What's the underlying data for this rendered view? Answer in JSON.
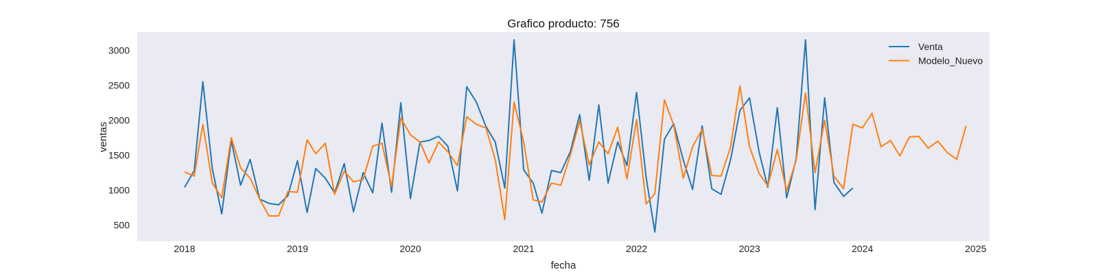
{
  "chart_data": {
    "type": "line",
    "title": "Grafico producto: 756",
    "xlabel": "fecha",
    "ylabel": "ventas",
    "xlim": [
      "2017-08-01",
      "2025-02-15"
    ],
    "ylim": [
      270,
      3260
    ],
    "x_ticks": [
      "2018",
      "2019",
      "2020",
      "2021",
      "2022",
      "2023",
      "2024",
      "2025"
    ],
    "y_ticks": [
      500,
      1000,
      1500,
      2000,
      2500,
      3000
    ],
    "grid": false,
    "legend_position": "top-right",
    "series": [
      {
        "name": "Venta",
        "color": "#1f77b4",
        "x": [
          "2018-01",
          "2018-02",
          "2018-03",
          "2018-04",
          "2018-05",
          "2018-06",
          "2018-07",
          "2018-08",
          "2018-09",
          "2018-10",
          "2018-11",
          "2018-12",
          "2019-01",
          "2019-02",
          "2019-03",
          "2019-04",
          "2019-05",
          "2019-06",
          "2019-07",
          "2019-08",
          "2019-09",
          "2019-10",
          "2019-11",
          "2019-12",
          "2020-01",
          "2020-02",
          "2020-03",
          "2020-04",
          "2020-05",
          "2020-06",
          "2020-07",
          "2020-08",
          "2020-09",
          "2020-10",
          "2020-11",
          "2020-12",
          "2021-01",
          "2021-02",
          "2021-03",
          "2021-04",
          "2021-05",
          "2021-06",
          "2021-07",
          "2021-08",
          "2021-09",
          "2021-10",
          "2021-11",
          "2021-12",
          "2022-01",
          "2022-02",
          "2022-03",
          "2022-04",
          "2022-05",
          "2022-06",
          "2022-07",
          "2022-08",
          "2022-09",
          "2022-10",
          "2022-11",
          "2022-12",
          "2023-01",
          "2023-02",
          "2023-03",
          "2023-04",
          "2023-05",
          "2023-06",
          "2023-07",
          "2023-08",
          "2023-09",
          "2023-10",
          "2023-11",
          "2023-12"
        ],
        "y": [
          1040,
          1280,
          2550,
          1300,
          660,
          1710,
          1070,
          1440,
          870,
          810,
          790,
          920,
          1420,
          680,
          1310,
          1170,
          960,
          1380,
          690,
          1250,
          960,
          1960,
          970,
          2250,
          880,
          1690,
          1710,
          1770,
          1630,
          990,
          2480,
          2260,
          1910,
          1690,
          1030,
          3150,
          1290,
          1100,
          670,
          1280,
          1250,
          1550,
          2080,
          1140,
          2220,
          1100,
          1690,
          1350,
          2400,
          1180,
          400,
          1730,
          1950,
          1430,
          1010,
          1920,
          1020,
          940,
          1440,
          2140,
          2320,
          1550,
          1040,
          2180,
          890,
          1450,
          3150,
          720,
          2320,
          1110,
          910,
          1030
        ]
      },
      {
        "name": "Modelo_Nuevo",
        "color": "#ff7f0e",
        "x": [
          "2018-01",
          "2018-02",
          "2018-03",
          "2018-04",
          "2018-05",
          "2018-06",
          "2018-07",
          "2018-08",
          "2018-09",
          "2018-10",
          "2018-11",
          "2018-12",
          "2019-01",
          "2019-02",
          "2019-03",
          "2019-04",
          "2019-05",
          "2019-06",
          "2019-07",
          "2019-08",
          "2019-09",
          "2019-10",
          "2019-11",
          "2019-12",
          "2020-01",
          "2020-02",
          "2020-03",
          "2020-04",
          "2020-05",
          "2020-06",
          "2020-07",
          "2020-08",
          "2020-09",
          "2020-10",
          "2020-11",
          "2020-12",
          "2021-01",
          "2021-02",
          "2021-03",
          "2021-04",
          "2021-05",
          "2021-06",
          "2021-07",
          "2021-08",
          "2021-09",
          "2021-10",
          "2021-11",
          "2021-12",
          "2022-01",
          "2022-02",
          "2022-03",
          "2022-04",
          "2022-05",
          "2022-06",
          "2022-07",
          "2022-08",
          "2022-09",
          "2022-10",
          "2022-11",
          "2022-12",
          "2023-01",
          "2023-02",
          "2023-03",
          "2023-04",
          "2023-05",
          "2023-06",
          "2023-07",
          "2023-08",
          "2023-09",
          "2023-10",
          "2023-11",
          "2023-12",
          "2024-01",
          "2024-02",
          "2024-03",
          "2024-04",
          "2024-05",
          "2024-06",
          "2024-07",
          "2024-08",
          "2024-09",
          "2024-10",
          "2024-11",
          "2024-12"
        ],
        "y": [
          1260,
          1200,
          1940,
          1100,
          890,
          1750,
          1320,
          1170,
          870,
          630,
          630,
          980,
          970,
          1720,
          1520,
          1670,
          940,
          1270,
          1120,
          1150,
          1630,
          1670,
          1050,
          2030,
          1790,
          1690,
          1390,
          1690,
          1550,
          1350,
          2050,
          1940,
          1890,
          1440,
          580,
          2260,
          1690,
          860,
          830,
          1100,
          1070,
          1500,
          1990,
          1360,
          1690,
          1520,
          1900,
          1160,
          2010,
          800,
          950,
          2290,
          1930,
          1170,
          1620,
          1870,
          1210,
          1200,
          1620,
          2490,
          1620,
          1240,
          1060,
          1580,
          990,
          1430,
          2390,
          1250,
          2000,
          1200,
          1020,
          1940,
          1890,
          2100,
          1620,
          1710,
          1490,
          1760,
          1770,
          1600,
          1700,
          1540,
          1440,
          1920
        ]
      }
    ]
  }
}
